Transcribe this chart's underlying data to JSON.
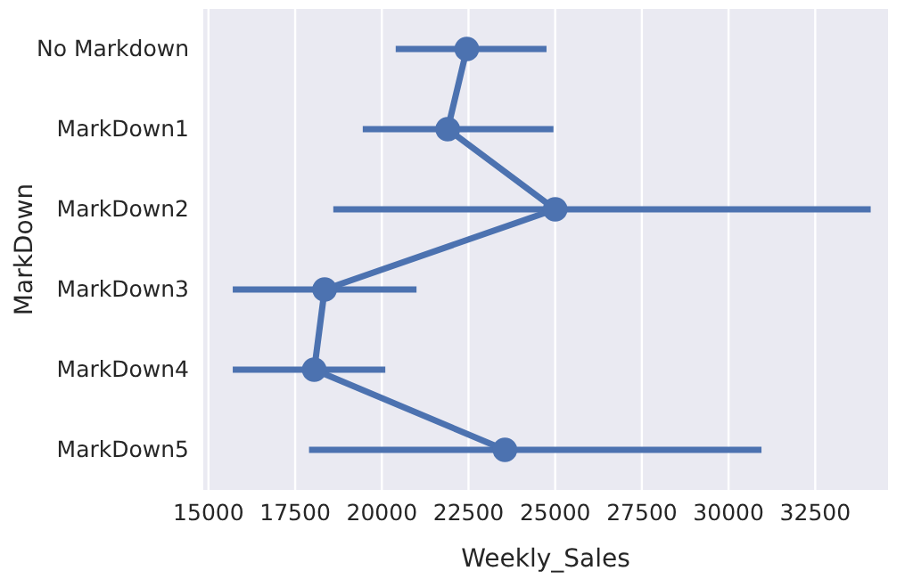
{
  "chart_data": {
    "type": "line",
    "orientation": "horizontal",
    "xlabel": "Weekly_Sales",
    "ylabel": "MarkDown",
    "categories": [
      "No Markdown",
      "MarkDown1",
      "MarkDown2",
      "MarkDown3",
      "MarkDown4",
      "MarkDown5"
    ],
    "series": [
      {
        "color": "#4c72b0",
        "values": [
          22450,
          21900,
          25000,
          18350,
          18050,
          23550
        ],
        "errors": [
          [
            20400,
            24750
          ],
          [
            19450,
            24950
          ],
          [
            18600,
            34100
          ],
          [
            15700,
            21000
          ],
          [
            15700,
            20100
          ],
          [
            17900,
            30950
          ]
        ]
      }
    ],
    "xlim": [
      14850,
      34600
    ],
    "xticks": [
      15000,
      17500,
      20000,
      22500,
      25000,
      27500,
      30000,
      32500
    ],
    "grid": "x",
    "marker": "circle",
    "line_style": "solid"
  }
}
